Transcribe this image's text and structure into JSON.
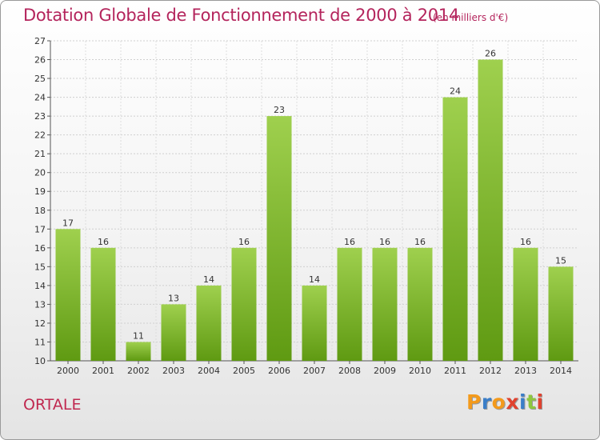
{
  "header": {
    "title": "Dotation Globale de Fonctionnement de 2000 à 2014",
    "subtitle": "(en milliers d'€)"
  },
  "commune": "ORTALE",
  "logo": {
    "letters": [
      "P",
      "r",
      "o",
      "x",
      "i",
      "t",
      "i"
    ],
    "colors": [
      "#f39a1c",
      "#3a7ec8",
      "#f39a1c",
      "#e0422f",
      "#3a7ec8",
      "#8ec63f",
      "#e0422f"
    ]
  },
  "colors": {
    "bar_top": "#9fd04e",
    "bar_bottom": "#5f9a12",
    "title": "#b4245c"
  },
  "chart_data": {
    "type": "bar",
    "title": "Dotation Globale de Fonctionnement de 2000 à 2014",
    "subtitle": "(en milliers d'€)",
    "categories": [
      "2000",
      "2001",
      "2002",
      "2003",
      "2004",
      "2005",
      "2006",
      "2007",
      "2008",
      "2009",
      "2010",
      "2011",
      "2012",
      "2013",
      "2014"
    ],
    "values": [
      17,
      16,
      11,
      13,
      14,
      16,
      23,
      14,
      16,
      16,
      16,
      24,
      26,
      16,
      15
    ],
    "ylim": [
      10,
      27
    ],
    "yticks": [
      10,
      11,
      12,
      13,
      14,
      15,
      16,
      17,
      18,
      19,
      20,
      21,
      22,
      23,
      24,
      25,
      26,
      27
    ],
    "grid": true,
    "xlabel": "",
    "ylabel": ""
  }
}
